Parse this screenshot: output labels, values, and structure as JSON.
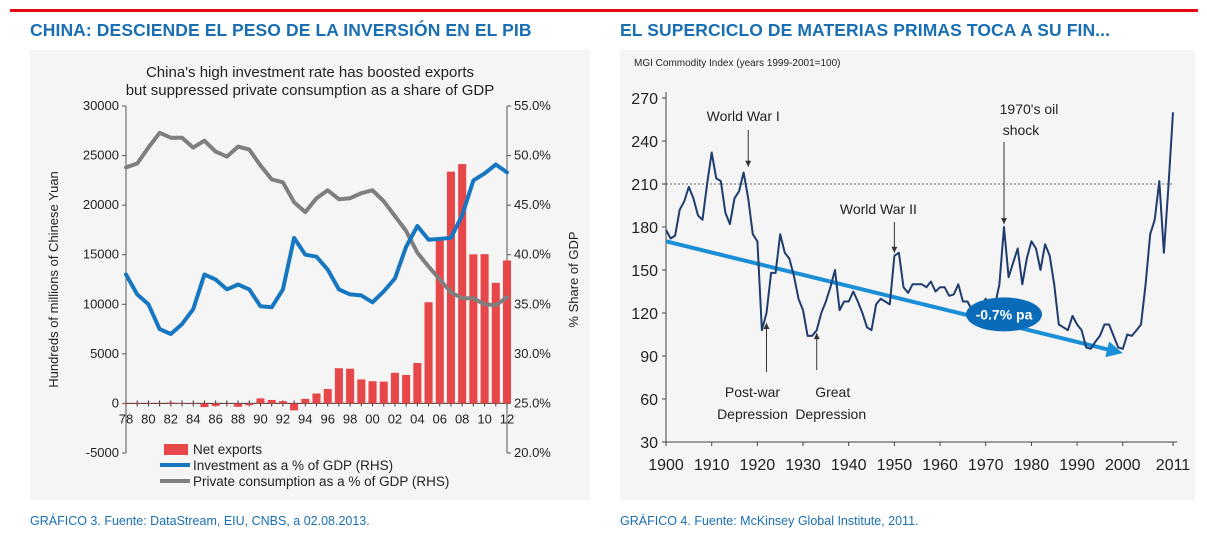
{
  "headings": {
    "left": "CHINA: DESCIENDE EL PESO DE LA INVERSIÓN EN EL PIB",
    "right": "EL SUPERCICLO DE MATERIAS PRIMAS TOCA A SU FIN..."
  },
  "captions": {
    "left": "GRÁFICO 3. Fuente: DataStream, EIU, CNBS, a 02.08.2013.",
    "right": "GRÁFICO 4. Fuente: McKinsey Global Institute, 2011."
  },
  "colors": {
    "accent_red": "#e30613",
    "heading_blue": "#1a6fb3",
    "net_exports": "#e8474a",
    "investment": "#1677c0",
    "consumption": "#7f7f7f",
    "commodity": "#1f3c6e",
    "trend": "#1b8fd6"
  },
  "chart_data": [
    {
      "type": "bar+line",
      "title": "China's high investment rate has boosted exports but suppressed private consumption as a share of GDP",
      "ylabel": "Hundreds of millions of Chinese Yuan",
      "y2label": "% Share of GDP",
      "ylim": [
        -5000,
        30000
      ],
      "y2lim": [
        20.0,
        55.0
      ],
      "yticks": [
        "30000",
        "25000",
        "20000",
        "15000",
        "10000",
        "5000",
        "0",
        "-5000"
      ],
      "y2ticks": [
        "55.0%",
        "50.0%",
        "45.0%",
        "40.0%",
        "35.0%",
        "30.0%",
        "25.0%",
        "20.0%"
      ],
      "x": [
        1978,
        1979,
        1980,
        1981,
        1982,
        1983,
        1984,
        1985,
        1986,
        1987,
        1988,
        1989,
        1990,
        1991,
        1992,
        1993,
        1994,
        1995,
        1996,
        1997,
        1998,
        1999,
        2000,
        2001,
        2002,
        2003,
        2004,
        2005,
        2006,
        2007,
        2008,
        2009,
        2010,
        2011,
        2012
      ],
      "xticklabels": [
        "78",
        "80",
        "82",
        "84",
        "86",
        "88",
        "90",
        "92",
        "94",
        "96",
        "98",
        "00",
        "02",
        "04",
        "06",
        "08",
        "10",
        "12"
      ],
      "series": [
        {
          "name": "Net exports",
          "kind": "bar",
          "axis": "left",
          "values": [
            -11,
            -20,
            -19,
            0,
            100,
            50,
            -15,
            -370,
            -255,
            -35,
            -340,
            -185,
            510,
            350,
            230,
            -700,
            460,
            1000,
            1460,
            3550,
            3500,
            2420,
            2240,
            2200,
            3090,
            2870,
            4080,
            10210,
            16650,
            23380,
            24140,
            15040,
            15060,
            12160,
            14420
          ]
        },
        {
          "name": "Investment as a % of GDP (RHS)",
          "kind": "line",
          "axis": "right",
          "values": [
            38.0,
            36.0,
            35.0,
            32.5,
            32.0,
            33.0,
            34.5,
            38.0,
            37.5,
            36.5,
            37.0,
            36.5,
            34.8,
            34.7,
            36.5,
            41.7,
            40.0,
            39.8,
            38.5,
            36.5,
            36.0,
            35.9,
            35.2,
            36.3,
            37.6,
            40.8,
            42.9,
            41.5,
            41.6,
            41.7,
            44.0,
            47.5,
            48.2,
            49.1,
            48.3
          ]
        },
        {
          "name": "Private consumption as a % of GDP (RHS)",
          "kind": "line",
          "axis": "right",
          "values": [
            48.8,
            49.2,
            50.8,
            52.3,
            51.8,
            51.8,
            50.8,
            51.5,
            50.4,
            49.9,
            50.9,
            50.6,
            49.0,
            47.6,
            47.3,
            45.3,
            44.3,
            45.7,
            46.5,
            45.6,
            45.7,
            46.2,
            46.5,
            45.4,
            43.9,
            42.4,
            40.2,
            38.8,
            37.5,
            36.2,
            35.6,
            35.6,
            35.0,
            34.9,
            35.7
          ]
        }
      ],
      "legend": "bottom"
    },
    {
      "type": "line",
      "title": "MGI Commodity Index (years 1999-2001=100)",
      "ylim": [
        30,
        270
      ],
      "yticks": [
        "270",
        "240",
        "210",
        "180",
        "150",
        "120",
        "90",
        "60",
        "30"
      ],
      "xlim": [
        1900,
        2011
      ],
      "xticks": [
        "1900",
        "1910",
        "1920",
        "1930",
        "1940",
        "1950",
        "1960",
        "1970",
        "1980",
        "1990",
        "2000",
        "2011"
      ],
      "reference_line": 210,
      "x": [
        1900,
        1901,
        1902,
        1903,
        1904,
        1905,
        1906,
        1907,
        1908,
        1909,
        1910,
        1911,
        1912,
        1913,
        1914,
        1915,
        1916,
        1917,
        1918,
        1919,
        1920,
        1921,
        1922,
        1923,
        1924,
        1925,
        1926,
        1927,
        1928,
        1929,
        1930,
        1931,
        1932,
        1933,
        1934,
        1935,
        1936,
        1937,
        1938,
        1939,
        1940,
        1941,
        1942,
        1943,
        1944,
        1945,
        1946,
        1947,
        1948,
        1949,
        1950,
        1951,
        1952,
        1953,
        1954,
        1955,
        1956,
        1957,
        1958,
        1959,
        1960,
        1961,
        1962,
        1963,
        1964,
        1965,
        1966,
        1967,
        1968,
        1969,
        1970,
        1971,
        1972,
        1973,
        1974,
        1975,
        1976,
        1977,
        1978,
        1979,
        1980,
        1981,
        1982,
        1983,
        1984,
        1985,
        1986,
        1987,
        1988,
        1989,
        1990,
        1991,
        1992,
        1993,
        1994,
        1995,
        1996,
        1997,
        1998,
        1999,
        2000,
        2001,
        2002,
        2003,
        2004,
        2005,
        2006,
        2007,
        2008,
        2009,
        2010,
        2011
      ],
      "series": [
        {
          "name": "MGI Commodity Index",
          "values": [
            178,
            172,
            174,
            192,
            198,
            208,
            200,
            188,
            185,
            210,
            232,
            214,
            212,
            190,
            182,
            200,
            205,
            218,
            200,
            175,
            170,
            108,
            120,
            148,
            148,
            175,
            162,
            158,
            146,
            130,
            122,
            104,
            104,
            108,
            120,
            128,
            138,
            150,
            122,
            128,
            128,
            135,
            128,
            120,
            110,
            108,
            126,
            130,
            128,
            126,
            160,
            162,
            138,
            134,
            140,
            140,
            140,
            138,
            142,
            135,
            138,
            138,
            132,
            133,
            140,
            128,
            128,
            122,
            120,
            124,
            130,
            125,
            125,
            140,
            180,
            145,
            155,
            165,
            140,
            158,
            170,
            165,
            150,
            168,
            160,
            140,
            112,
            110,
            108,
            118,
            112,
            108,
            96,
            95,
            100,
            104,
            112,
            112,
            104,
            96,
            95,
            105,
            104,
            108,
            112,
            140,
            175,
            185,
            212,
            162,
            208,
            260
          ]
        }
      ],
      "trend": {
        "start": [
          1900,
          170
        ],
        "end": [
          2000,
          92
        ],
        "label": "-0.7% pa"
      },
      "annotations": [
        "World War I",
        "World War II",
        "1970's oil",
        "shock",
        "Post-war",
        "Depression",
        "Great",
        "Depression"
      ]
    }
  ]
}
